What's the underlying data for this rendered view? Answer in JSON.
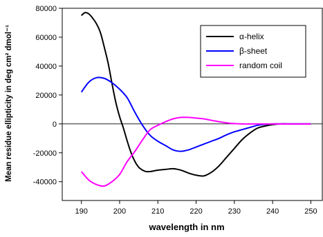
{
  "chart_data": {
    "type": "line",
    "title": "",
    "xlabel": "wavelength in nm",
    "ylabel": "Mean residue ellipticity in deg cm² dmol⁻¹",
    "xlim": [
      185,
      253
    ],
    "ylim": [
      -53000,
      80000
    ],
    "xticks": [
      190,
      200,
      210,
      220,
      230,
      240,
      250
    ],
    "yticks": [
      -40000,
      -20000,
      0,
      20000,
      40000,
      60000,
      80000
    ],
    "grid": false,
    "zero_line": true,
    "legend_position": "top-right",
    "series": [
      {
        "name": "α-helix",
        "color": "#000000",
        "x": [
          190,
          191,
          192,
          193,
          194,
          195,
          196,
          197,
          198,
          199,
          200,
          201,
          202,
          203,
          204,
          205,
          206,
          207,
          208,
          209,
          210,
          212,
          214,
          216,
          218,
          220,
          222,
          224,
          226,
          228,
          230,
          232,
          234,
          236,
          238,
          240,
          242,
          244,
          246,
          248,
          250
        ],
        "y": [
          75000,
          77000,
          76000,
          73000,
          69000,
          63000,
          53000,
          42000,
          28000,
          15000,
          5000,
          -3000,
          -12000,
          -20000,
          -26000,
          -30000,
          -32000,
          -33000,
          -33000,
          -32500,
          -32000,
          -31500,
          -31000,
          -32000,
          -34000,
          -35500,
          -36000,
          -33500,
          -29000,
          -23000,
          -17000,
          -11000,
          -6500,
          -3000,
          -1500,
          -500,
          0,
          0,
          0,
          0,
          0
        ]
      },
      {
        "name": "β-sheet",
        "color": "#0000ff",
        "x": [
          190,
          192,
          194,
          196,
          198,
          200,
          202,
          204,
          206,
          208,
          210,
          212,
          214,
          216,
          218,
          220,
          222,
          224,
          226,
          228,
          230,
          232,
          234,
          236,
          238,
          240,
          242,
          244,
          246,
          248,
          250
        ],
        "y": [
          22000,
          29000,
          32000,
          31500,
          28500,
          24000,
          18000,
          8000,
          -1000,
          -8000,
          -12000,
          -15000,
          -18000,
          -19000,
          -18000,
          -16000,
          -14000,
          -12000,
          -10000,
          -7500,
          -5500,
          -4000,
          -2500,
          -1000,
          -300,
          0,
          0,
          0,
          0,
          0,
          0
        ]
      },
      {
        "name": "random coil",
        "color": "#ff00ff",
        "x": [
          190,
          192,
          194,
          196,
          198,
          200,
          202,
          204,
          206,
          208,
          210,
          212,
          214,
          216,
          218,
          220,
          222,
          224,
          226,
          228,
          230,
          232,
          234,
          236,
          238,
          240,
          242,
          244,
          246,
          248,
          250
        ],
        "y": [
          -33000,
          -39000,
          -42000,
          -43000,
          -40000,
          -35000,
          -26000,
          -19000,
          -11000,
          -4000,
          -1000,
          1500,
          3500,
          4500,
          4500,
          4000,
          3500,
          2500,
          1500,
          700,
          200,
          0,
          0,
          0,
          0,
          0,
          0,
          0,
          0,
          0,
          0
        ]
      }
    ]
  }
}
